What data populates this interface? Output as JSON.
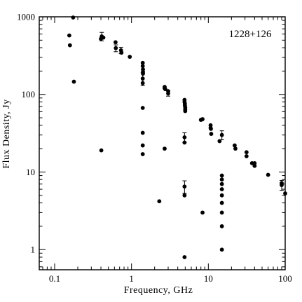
{
  "chart_data": {
    "type": "scatter",
    "annotation": "1228+126",
    "xlabel": "Frequency, GHz",
    "ylabel": "Flux Density, Jy",
    "xscale": "log",
    "yscale": "log",
    "xlim": [
      0.063,
      100
    ],
    "ylim": [
      0.55,
      1000
    ],
    "x_tick_labels": [
      {
        "value": 0.1,
        "label": "0.1"
      },
      {
        "value": 1,
        "label": "1"
      },
      {
        "value": 10,
        "label": "10"
      },
      {
        "value": 100,
        "label": "100"
      }
    ],
    "y_tick_labels": [
      {
        "value": 1,
        "label": "1"
      },
      {
        "value": 10,
        "label": "10"
      },
      {
        "value": 100,
        "label": "100"
      },
      {
        "value": 1000,
        "label": "1000"
      }
    ],
    "grid": false,
    "points": [
      {
        "x": 0.155,
        "y": 575
      },
      {
        "x": 0.158,
        "y": 430
      },
      {
        "x": 0.174,
        "y": 980
      },
      {
        "x": 0.178,
        "y": 146
      },
      {
        "x": 0.4,
        "y": 520
      },
      {
        "x": 0.405,
        "y": 19
      },
      {
        "x": 0.41,
        "y": 560,
        "err": 70
      },
      {
        "x": 0.43,
        "y": 540
      },
      {
        "x": 0.62,
        "y": 470
      },
      {
        "x": 0.625,
        "y": 395,
        "err": 40
      },
      {
        "x": 0.73,
        "y": 370,
        "err": 35
      },
      {
        "x": 0.74,
        "y": 345
      },
      {
        "x": 0.95,
        "y": 305
      },
      {
        "x": 1.4,
        "y": 255
      },
      {
        "x": 1.4,
        "y": 232
      },
      {
        "x": 1.41,
        "y": 210
      },
      {
        "x": 1.41,
        "y": 195
      },
      {
        "x": 1.41,
        "y": 185
      },
      {
        "x": 1.4,
        "y": 160,
        "err": 30
      },
      {
        "x": 1.4,
        "y": 140
      },
      {
        "x": 1.4,
        "y": 67
      },
      {
        "x": 1.4,
        "y": 32
      },
      {
        "x": 1.4,
        "y": 22
      },
      {
        "x": 1.4,
        "y": 17
      },
      {
        "x": 2.3,
        "y": 4.2
      },
      {
        "x": 2.7,
        "y": 20
      },
      {
        "x": 2.7,
        "y": 125
      },
      {
        "x": 2.7,
        "y": 120
      },
      {
        "x": 2.75,
        "y": 117
      },
      {
        "x": 3.0,
        "y": 110
      },
      {
        "x": 3.0,
        "y": 103,
        "err": 8
      },
      {
        "x": 4.9,
        "y": 85
      },
      {
        "x": 4.9,
        "y": 80
      },
      {
        "x": 4.95,
        "y": 76
      },
      {
        "x": 4.95,
        "y": 72
      },
      {
        "x": 5.0,
        "y": 68
      },
      {
        "x": 5.0,
        "y": 64
      },
      {
        "x": 5.0,
        "y": 61
      },
      {
        "x": 4.9,
        "y": 28,
        "err": 4
      },
      {
        "x": 4.9,
        "y": 24
      },
      {
        "x": 4.9,
        "y": 6.5,
        "err": 1.2
      },
      {
        "x": 4.9,
        "y": 5.0
      },
      {
        "x": 4.9,
        "y": 0.8
      },
      {
        "x": 8.0,
        "y": 47
      },
      {
        "x": 8.4,
        "y": 48
      },
      {
        "x": 8.4,
        "y": 3.0
      },
      {
        "x": 10.7,
        "y": 40
      },
      {
        "x": 10.7,
        "y": 37
      },
      {
        "x": 10.8,
        "y": 36
      },
      {
        "x": 10.9,
        "y": 31
      },
      {
        "x": 14.0,
        "y": 25
      },
      {
        "x": 15.0,
        "y": 30,
        "err": 4
      },
      {
        "x": 15.0,
        "y": 9.0
      },
      {
        "x": 15.0,
        "y": 8.0
      },
      {
        "x": 15.0,
        "y": 7.0
      },
      {
        "x": 15.0,
        "y": 6.0
      },
      {
        "x": 15.0,
        "y": 5.0
      },
      {
        "x": 15.0,
        "y": 4.0
      },
      {
        "x": 15.0,
        "y": 3.0
      },
      {
        "x": 15.0,
        "y": 2.0
      },
      {
        "x": 15.0,
        "y": 1.0
      },
      {
        "x": 22.0,
        "y": 22
      },
      {
        "x": 22.5,
        "y": 20
      },
      {
        "x": 31.4,
        "y": 18
      },
      {
        "x": 31.4,
        "y": 16
      },
      {
        "x": 37.0,
        "y": 13
      },
      {
        "x": 40.0,
        "y": 13
      },
      {
        "x": 40.0,
        "y": 12
      },
      {
        "x": 60.0,
        "y": 9.2
      },
      {
        "x": 90.0,
        "y": 7.2
      },
      {
        "x": 90.0,
        "y": 6.8,
        "err": 1.0
      },
      {
        "x": 100.0,
        "y": 5.3
      }
    ]
  }
}
